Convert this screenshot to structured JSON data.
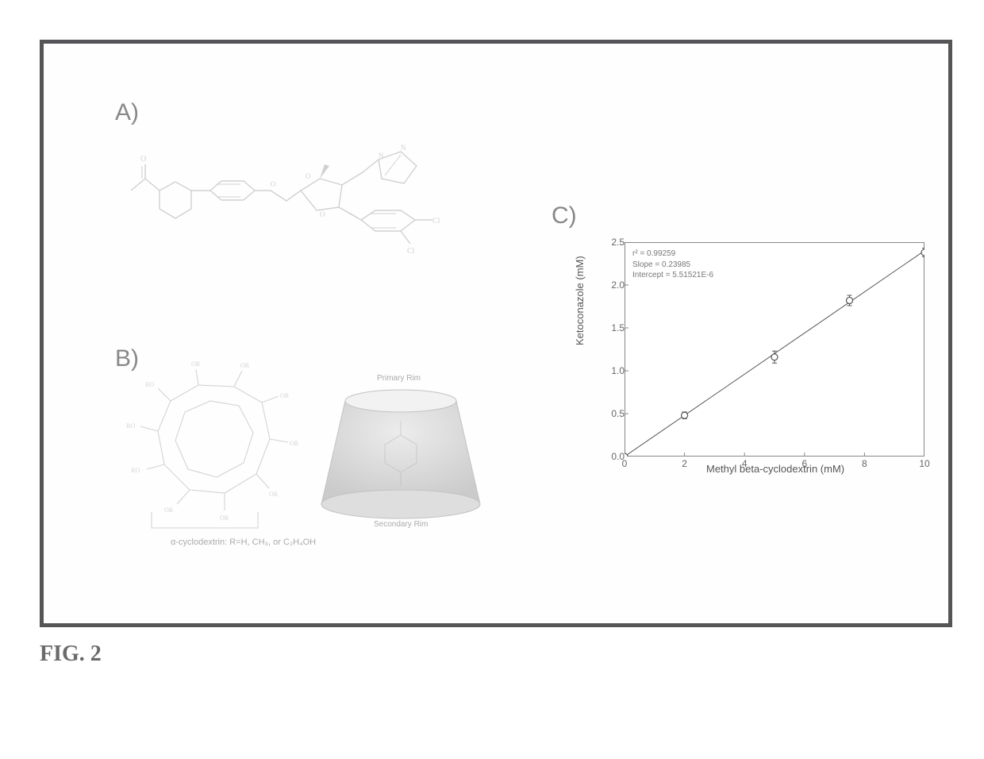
{
  "figure": {
    "caption": "FIG. 2",
    "panels": {
      "a": {
        "label": "A)"
      },
      "b": {
        "label": "B)",
        "subcaption_left": "α-cyclodextrin:  R=H, CH₃, or C₂H₄OH",
        "label_primary": "Primary Rim",
        "label_secondary": "Secondary Rim"
      },
      "c": {
        "label": "C)",
        "chart": {
          "type": "scatter",
          "xlabel": "Methyl beta-cyclodextrin (mM)",
          "ylabel": "Ketoconazole (mM)",
          "xlim": [
            0,
            10
          ],
          "ylim": [
            0,
            2.5
          ],
          "xticks": [
            0,
            2,
            4,
            6,
            8,
            10
          ],
          "yticks": [
            0.0,
            0.5,
            1.0,
            1.5,
            2.0,
            2.5
          ],
          "axis_color": "#888888",
          "point_color": "#555555",
          "line_color": "#555555",
          "marker": "circle",
          "marker_size": 4,
          "line_width": 1,
          "background_color": "#ffffff",
          "stats": {
            "r2_label": "r² = 0.99259",
            "slope_label": "Slope = 0.23985",
            "intercept_label": "Intercept = 5.51521E-6"
          },
          "points": [
            {
              "x": 0,
              "y": 0.0,
              "err": 0.0
            },
            {
              "x": 2,
              "y": 0.48,
              "err": 0.04
            },
            {
              "x": 5,
              "y": 1.16,
              "err": 0.07
            },
            {
              "x": 7.5,
              "y": 1.82,
              "err": 0.06
            },
            {
              "x": 10,
              "y": 2.38,
              "err": 0.05
            }
          ],
          "fit_line": {
            "x0": 0,
            "y0": 0.0,
            "x1": 10,
            "y1": 2.4
          }
        }
      }
    }
  },
  "colors": {
    "frame_border": "#555558",
    "panel_label": "#888888",
    "structure_stroke": "#b8b8bb",
    "caption_text": "#6a6a6d"
  },
  "typography": {
    "caption_fontsize": 28,
    "panel_label_fontsize": 30,
    "axis_label_fontsize": 13,
    "tick_fontsize": 12,
    "stats_fontsize": 10
  }
}
